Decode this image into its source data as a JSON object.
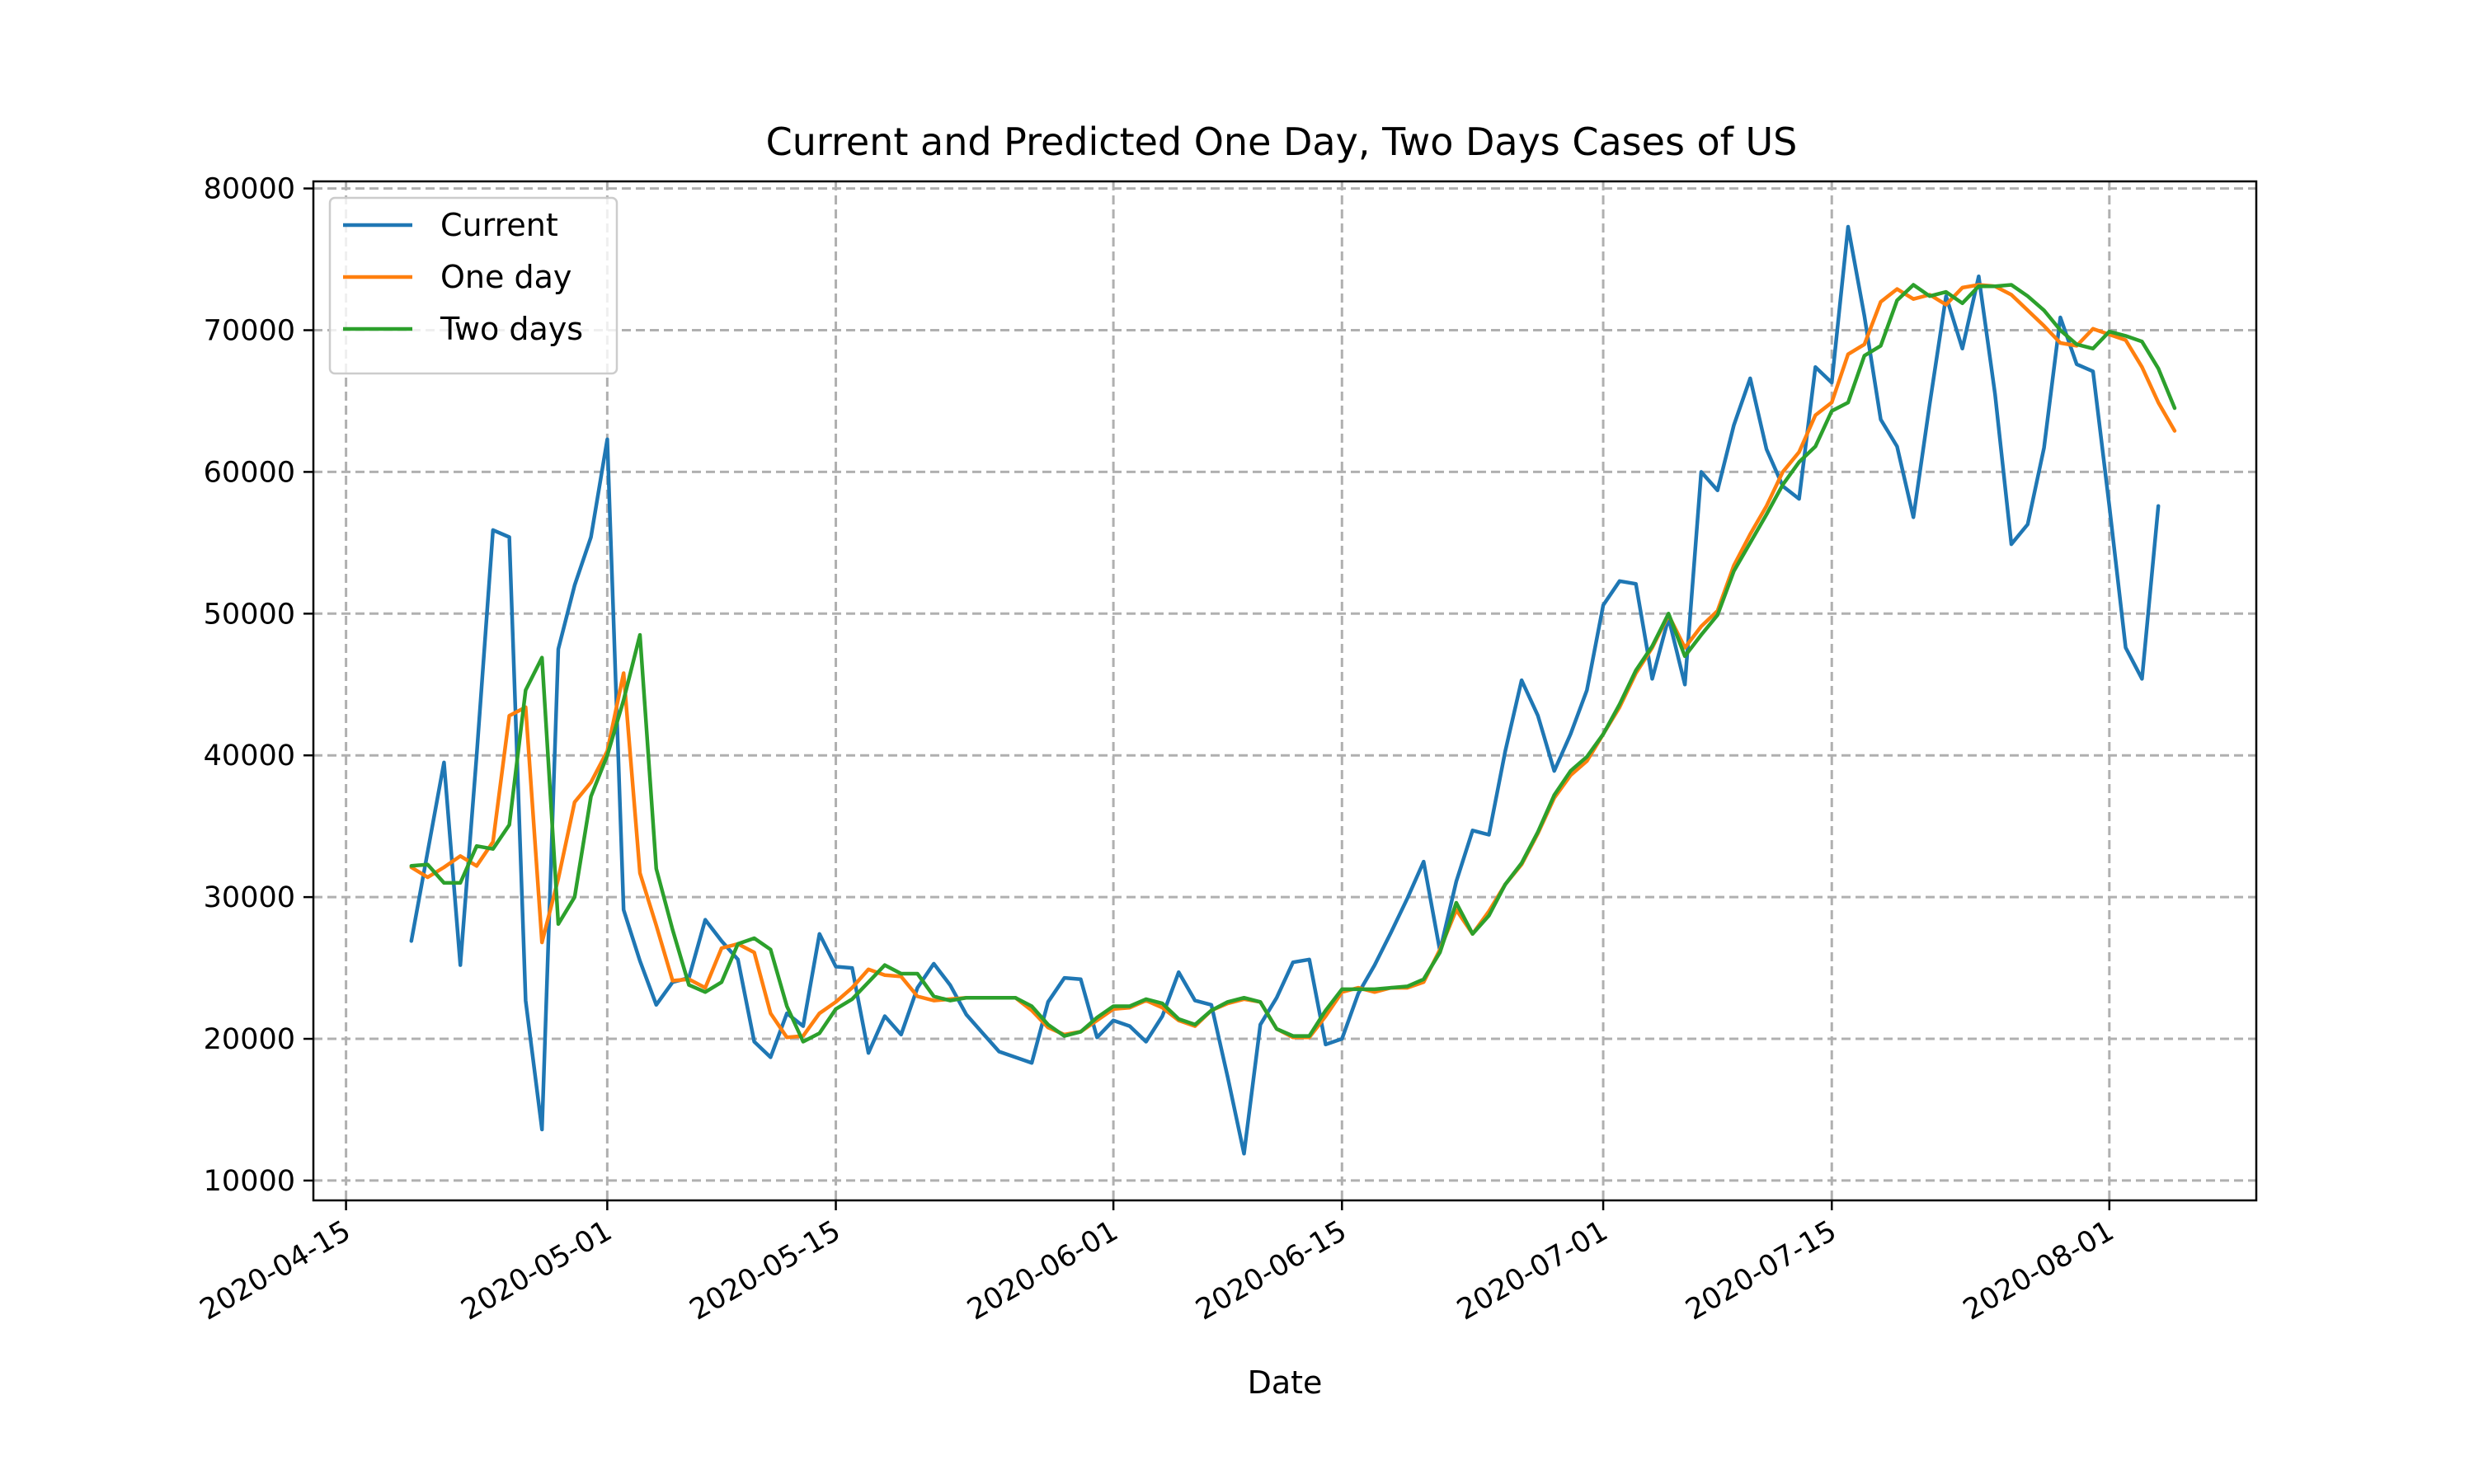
{
  "chart_data": {
    "type": "line",
    "title": "Current and Predicted One Day, Two Days Cases of US",
    "xlabel": "Date",
    "ylabel": "",
    "grid": true,
    "legend_position": "top-left",
    "x_start": "2020-04-19",
    "x_ticks": [
      "2020-04-15",
      "2020-05-01",
      "2020-05-15",
      "2020-06-01",
      "2020-06-15",
      "2020-07-01",
      "2020-07-15",
      "2020-08-01"
    ],
    "y_ticks": [
      10000,
      20000,
      30000,
      40000,
      50000,
      60000,
      70000,
      80000
    ],
    "y_tick_labels": [
      "10000",
      "20000",
      "30000",
      "40000",
      "50000",
      "60000",
      "70000",
      "80000"
    ],
    "xlim": [
      "2020-04-13",
      "2020-08-10"
    ],
    "ylim": [
      8600,
      80500
    ],
    "series": [
      {
        "name": "Current",
        "color": "#1f77b4",
        "values": [
          26900,
          33200,
          39500,
          25200,
          40000,
          55900,
          55400,
          22700,
          13600,
          47500,
          52000,
          55400,
          62300,
          29100,
          25500,
          22400,
          24000,
          24300,
          28400,
          26900,
          25600,
          19800,
          18700,
          21800,
          20900,
          27400,
          25100,
          25000,
          19000,
          21600,
          20300,
          23600,
          25300,
          23800,
          21700,
          20400,
          19100,
          18700,
          18300,
          22600,
          24300,
          24200,
          20100,
          21300,
          20900,
          19800,
          21600,
          24700,
          22700,
          22400,
          17300,
          11900,
          21000,
          22900,
          25400,
          25600,
          19600,
          20000,
          23200,
          25200,
          27500,
          29900,
          32500,
          26200,
          31100,
          34700,
          34400,
          40300,
          45300,
          42800,
          38900,
          41500,
          44600,
          50600,
          52300,
          52100,
          45400,
          49700,
          45000,
          60000,
          58700,
          63300,
          66600,
          61600,
          59000,
          58100,
          67400,
          66300,
          77300,
          71000,
          63700,
          61800,
          56800,
          64800,
          72400,
          68700,
          73800,
          65500,
          54900,
          56300,
          61700,
          70900,
          67600,
          67100,
          57600,
          47600,
          45400,
          57600
        ]
      },
      {
        "name": "One day",
        "color": "#ff7f0e",
        "values": [
          32100,
          31400,
          32100,
          32900,
          32200,
          33900,
          42800,
          43400,
          26800,
          31300,
          36700,
          38100,
          40300,
          45800,
          31700,
          28000,
          24100,
          24200,
          23600,
          26400,
          26700,
          26100,
          21800,
          20100,
          20200,
          21800,
          22600,
          23600,
          24900,
          24500,
          24400,
          23000,
          22700,
          22800,
          22900,
          22900,
          22900,
          22900,
          22000,
          20800,
          20300,
          20500,
          21300,
          22100,
          22200,
          22700,
          22200,
          21300,
          20900,
          22000,
          22500,
          22800,
          22600,
          20700,
          20100,
          20100,
          21600,
          23300,
          23600,
          23300,
          23600,
          23600,
          24000,
          26300,
          29100,
          27400,
          29000,
          30900,
          32300,
          34500,
          37000,
          38600,
          39600,
          41500,
          43400,
          45800,
          47600,
          49900,
          47600,
          49100,
          50200,
          53400,
          55600,
          57600,
          60000,
          61400,
          64000,
          64900,
          68300,
          69000,
          72000,
          72900,
          72200,
          72500,
          71800,
          73000,
          73200,
          73100,
          72500,
          71400,
          70300,
          69100,
          68900,
          70100,
          69700,
          69300,
          67400,
          64900,
          62900
        ]
      },
      {
        "name": "Two days",
        "color": "#2ca02c",
        "values": [
          32200,
          32300,
          31000,
          31000,
          33600,
          33400,
          35100,
          44600,
          46900,
          28100,
          30000,
          37100,
          40000,
          43900,
          48500,
          32000,
          27700,
          23800,
          23300,
          24000,
          26700,
          27100,
          26300,
          22300,
          19800,
          20400,
          22100,
          22800,
          24000,
          25200,
          24600,
          24600,
          23000,
          22700,
          22900,
          22900,
          22900,
          22900,
          22300,
          21000,
          20200,
          20500,
          21500,
          22300,
          22300,
          22800,
          22500,
          21400,
          21000,
          22000,
          22600,
          22900,
          22600,
          20700,
          20200,
          20200,
          22000,
          23500,
          23500,
          23500,
          23600,
          23700,
          24200,
          26100,
          29600,
          27400,
          28700,
          30900,
          32400,
          34600,
          37200,
          38900,
          39900,
          41500,
          43600,
          46000,
          47700,
          50000,
          47000,
          48500,
          49900,
          53000,
          55000,
          57000,
          59100,
          60700,
          61800,
          64300,
          64900,
          68200,
          68900,
          72100,
          73200,
          72400,
          72700,
          71900,
          73100,
          73100,
          73200,
          72400,
          71400,
          70000,
          69000,
          68700,
          69900,
          69600,
          69200,
          67300,
          64500
        ]
      }
    ]
  }
}
